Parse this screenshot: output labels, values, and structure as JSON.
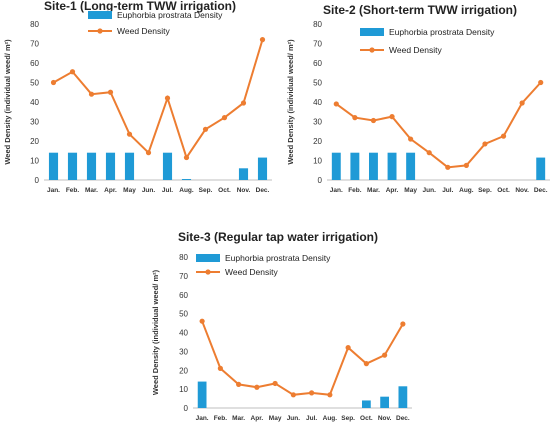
{
  "colors": {
    "bar": "#1f9ad6",
    "line": "#ed7d31"
  },
  "chart_data": [
    {
      "type": "bar",
      "title": "Site-1 (Long-term TWW irrigation)",
      "ylabel": "Weed Density (individual weed/ m²)",
      "xlabel": "",
      "ylim": [
        0,
        80
      ],
      "yticks": [
        0,
        10,
        20,
        30,
        40,
        50,
        60,
        70,
        80
      ],
      "legend_position": "top-left",
      "categories": [
        "Jan.",
        "Feb.",
        "Mar.",
        "Apr.",
        "May",
        "Jun.",
        "Jul.",
        "Aug.",
        "Sep.",
        "Oct.",
        "Nov.",
        "Dec."
      ],
      "series": [
        {
          "name": "Euphorbia prostrata Density",
          "type": "bar",
          "values": [
            14,
            14,
            14,
            14,
            14,
            0,
            14,
            0.5,
            0,
            0,
            6,
            11.5
          ]
        },
        {
          "name": "Weed Density",
          "type": "line",
          "values": [
            50,
            55.5,
            44,
            45,
            23.5,
            14,
            42,
            11.5,
            26,
            32,
            39.5,
            72
          ]
        }
      ]
    },
    {
      "type": "bar",
      "title": "Site-2 (Short-term TWW irrigation)",
      "ylabel": "Weed Density (individual weed/ m²)",
      "xlabel": "",
      "ylim": [
        0,
        80
      ],
      "yticks": [
        0,
        10,
        20,
        30,
        40,
        50,
        60,
        70,
        80
      ],
      "legend_position": "top-left",
      "categories": [
        "Jan.",
        "Feb.",
        "Mar.",
        "Apr.",
        "May",
        "Jun.",
        "Jul.",
        "Aug.",
        "Sep.",
        "Oct.",
        "Nov.",
        "Dec."
      ],
      "series": [
        {
          "name": "Euphorbia prostrata Density",
          "type": "bar",
          "values": [
            14,
            14,
            14,
            14,
            14,
            0,
            0,
            0,
            0,
            0,
            0,
            11.5
          ]
        },
        {
          "name": "Weed Density",
          "type": "line",
          "values": [
            39,
            32,
            30.5,
            32.5,
            21,
            14,
            6.5,
            7.5,
            18.5,
            22.5,
            39.5,
            50
          ]
        }
      ]
    },
    {
      "type": "bar",
      "title": "Site-3 (Regular tap water irrigation)",
      "ylabel": "Weed Density (individual weed/ m²)",
      "xlabel": "",
      "ylim": [
        0,
        80
      ],
      "yticks": [
        0,
        10,
        20,
        30,
        40,
        50,
        60,
        70,
        80
      ],
      "legend_position": "top-left",
      "categories": [
        "Jan.",
        "Feb.",
        "Mar.",
        "Apr.",
        "May",
        "Jun.",
        "Jul.",
        "Aug.",
        "Sep.",
        "Oct.",
        "Nov.",
        "Dec."
      ],
      "series": [
        {
          "name": "Euphorbia prostrata Density",
          "type": "bar",
          "values": [
            14,
            0,
            0,
            0,
            0,
            0,
            0,
            0,
            0,
            4,
            6,
            11.5
          ]
        },
        {
          "name": "Weed Density",
          "type": "line",
          "values": [
            46,
            21,
            12.5,
            11,
            13,
            7,
            8,
            7,
            32,
            23.5,
            28,
            44.5
          ]
        }
      ]
    }
  ]
}
